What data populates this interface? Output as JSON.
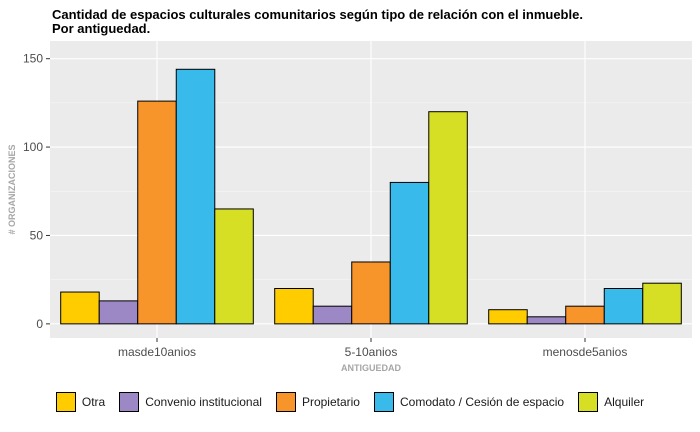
{
  "chart_data": {
    "type": "bar",
    "title": "Cantidad de espacios culturales comunitarios según tipo de relación con el inmueble.",
    "subtitle": "Por antiguedad.",
    "xlabel": "ANTIGUEDAD",
    "ylabel": "# ORGANIZACIONES",
    "ylim": [
      -8,
      160
    ],
    "yticks": [
      0,
      50,
      100,
      150
    ],
    "categories": [
      "masde10anios",
      "5-10anios",
      "menosde5anios"
    ],
    "series": [
      {
        "name": "Otra",
        "color": "#FFCC00",
        "values": [
          18,
          20,
          8
        ]
      },
      {
        "name": "Convenio institucional",
        "color": "#9C88C4",
        "values": [
          13,
          10,
          4
        ]
      },
      {
        "name": "Propietario",
        "color": "#F7942A",
        "values": [
          126,
          35,
          10
        ]
      },
      {
        "name": "Comodato / Cesión de espacio",
        "color": "#38BBEA",
        "values": [
          144,
          80,
          20
        ]
      },
      {
        "name": "Alquiler",
        "color": "#D6DF23",
        "values": [
          65,
          120,
          23
        ]
      }
    ],
    "grid": true,
    "legend_position": "bottom"
  }
}
